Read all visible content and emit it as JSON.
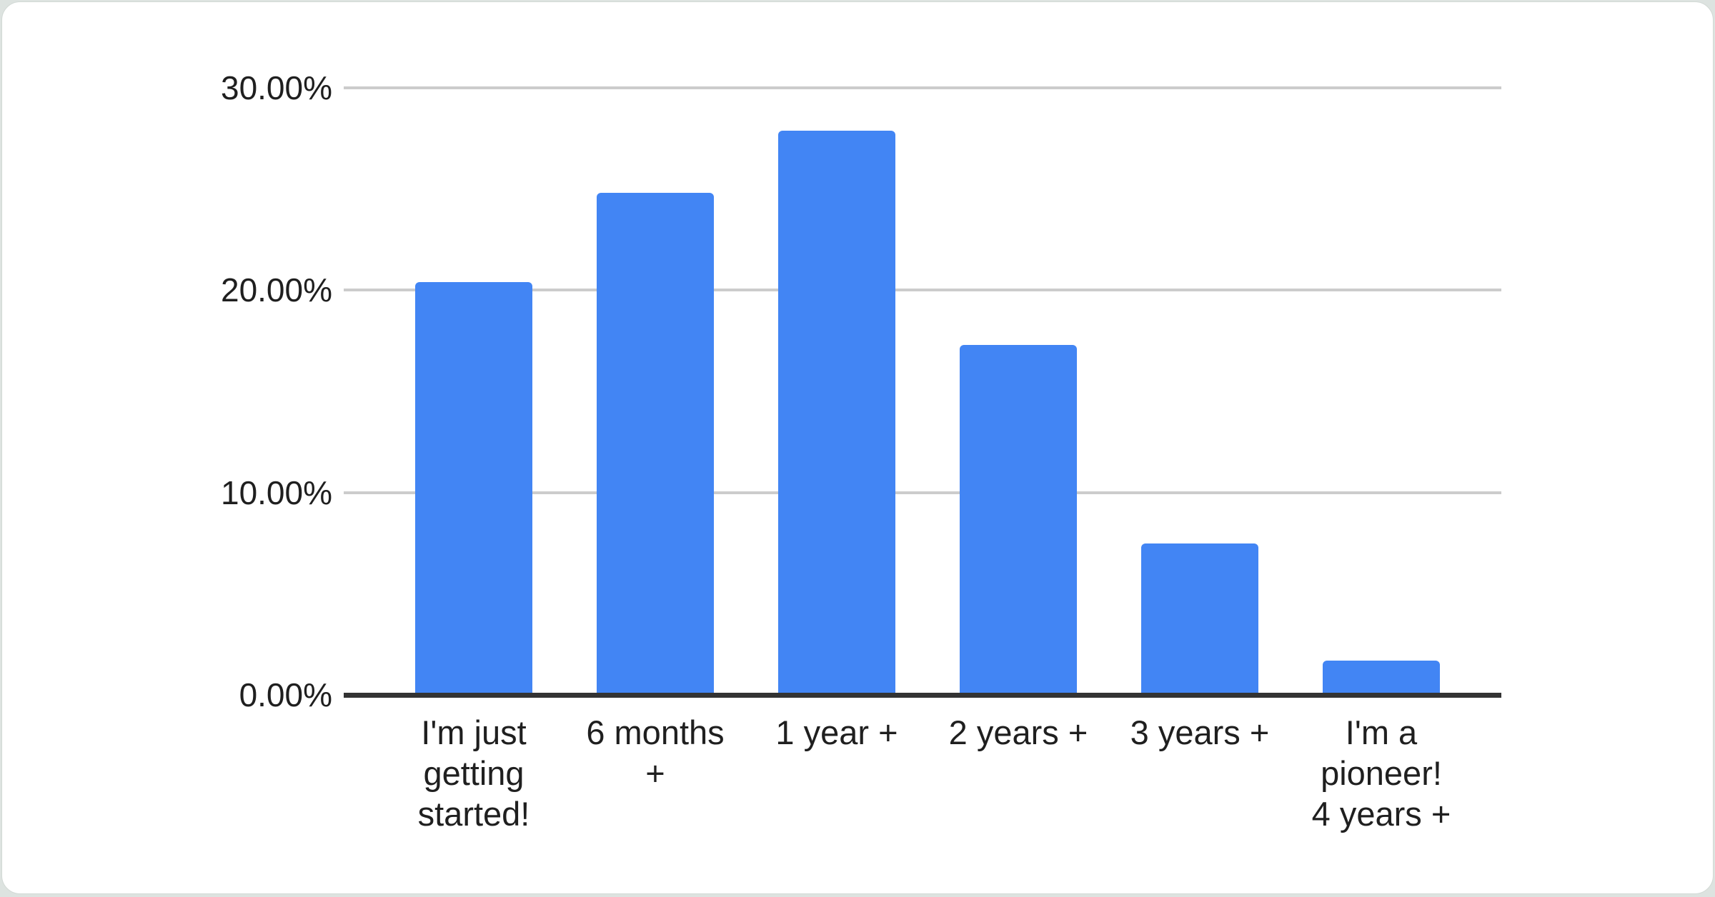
{
  "page": {
    "background_color": "#dde3e0",
    "card_background": "#ffffff"
  },
  "chart_data": {
    "type": "bar",
    "title": "",
    "xlabel": "",
    "ylabel": "",
    "categories": [
      "I'm just getting started!",
      "6 months +",
      "1 year +",
      "2 years +",
      "3 years +",
      "I'm a pioneer! 4 years +"
    ],
    "category_lines": [
      [
        "I'm just",
        "getting",
        "started!"
      ],
      [
        "6 months",
        "+"
      ],
      [
        "1 year +"
      ],
      [
        "2 years +"
      ],
      [
        "3 years +"
      ],
      [
        "I'm a",
        "pioneer!",
        "4 years +"
      ]
    ],
    "values": [
      20.4,
      24.8,
      27.9,
      17.3,
      7.5,
      1.7
    ],
    "unit": "%",
    "ylim": [
      0,
      30
    ],
    "y_tick_values": [
      0,
      10,
      20,
      30
    ],
    "y_tick_labels": [
      "0.00%",
      "10.00%",
      "20.00%",
      "30.00%"
    ],
    "grid": true,
    "legend": "none",
    "bar_color": "#4285f4",
    "gridline_color": "#cccccc",
    "axis_line_color": "#333333",
    "label_color": "#1f1f1f"
  }
}
